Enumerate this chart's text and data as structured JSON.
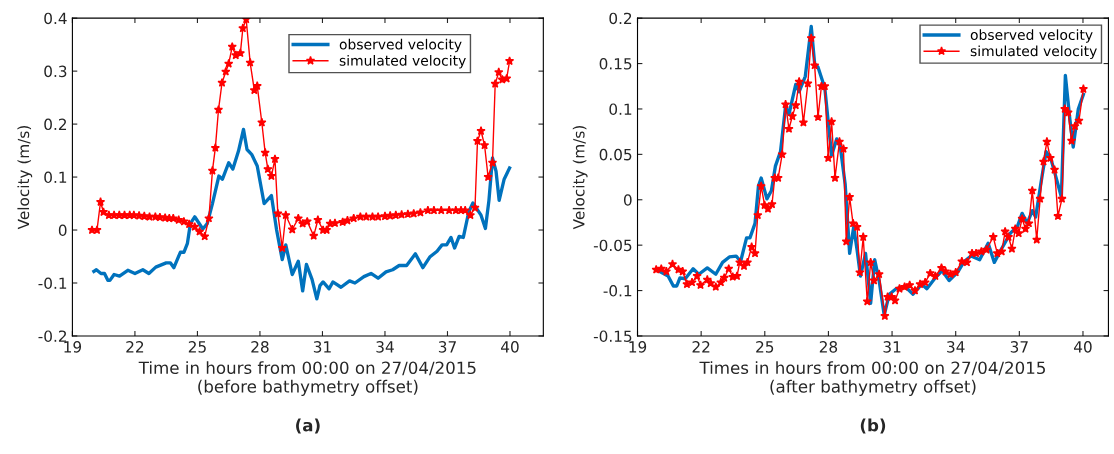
{
  "chart_data": [
    {
      "type": "line",
      "xlabel": "Time in hours from 00:00 on 27/04/2015\n(before bathymetry offset)",
      "ylabel": "Velocity (m/s)",
      "annotations": [
        "(a)"
      ],
      "xlim": [
        19,
        41.6
      ],
      "ylim": [
        -0.2,
        0.4
      ],
      "xticks": [
        19,
        22,
        25,
        28,
        31,
        34,
        37,
        40
      ],
      "yticks": [
        -0.2,
        -0.1,
        0,
        0.1,
        0.2,
        0.3,
        0.4
      ],
      "grid": false,
      "legend": "top right",
      "series": [
        {
          "name": "observed velocity",
          "color": "#0072bd",
          "marker": "none",
          "x": [
            20.03,
            20.15,
            20.37,
            20.54,
            20.7,
            20.8,
            21.0,
            21.26,
            21.66,
            22.0,
            22.38,
            22.67,
            23.0,
            23.5,
            23.7,
            23.87,
            24.18,
            24.35,
            24.52,
            24.66,
            24.87,
            25.26,
            25.47,
            25.72,
            26.03,
            26.2,
            26.5,
            26.7,
            26.97,
            27.21,
            27.38,
            27.6,
            27.87,
            28.2,
            28.55,
            28.8,
            29.07,
            29.24,
            29.55,
            29.84,
            30.05,
            30.23,
            30.5,
            30.73,
            30.88,
            31.03,
            31.32,
            31.5,
            31.89,
            32.3,
            32.56,
            32.99,
            33.33,
            33.67,
            34.05,
            34.37,
            34.68,
            35.04,
            35.46,
            35.82,
            36.15,
            36.5,
            36.74,
            36.96,
            37.17,
            37.34,
            37.56,
            37.76,
            38.02,
            38.22,
            38.61,
            38.82,
            38.99,
            39.16,
            39.33,
            39.48,
            39.72,
            39.98
          ],
          "values": [
            -0.078,
            -0.075,
            -0.082,
            -0.082,
            -0.095,
            -0.095,
            -0.084,
            -0.087,
            -0.076,
            -0.082,
            -0.075,
            -0.082,
            -0.07,
            -0.062,
            -0.062,
            -0.071,
            -0.042,
            -0.042,
            -0.025,
            0.012,
            0.025,
            0.002,
            0.012,
            0.05,
            0.102,
            0.096,
            0.127,
            0.115,
            0.149,
            0.19,
            0.152,
            0.143,
            0.121,
            0.05,
            0.065,
            0,
            -0.056,
            -0.028,
            -0.084,
            -0.059,
            -0.115,
            -0.065,
            -0.093,
            -0.13,
            -0.105,
            -0.098,
            -0.111,
            -0.098,
            -0.108,
            -0.096,
            -0.1,
            -0.088,
            -0.082,
            -0.091,
            -0.079,
            -0.075,
            -0.067,
            -0.067,
            -0.045,
            -0.071,
            -0.051,
            -0.04,
            -0.028,
            -0.028,
            -0.014,
            -0.034,
            -0.012,
            -0.014,
            0.034,
            0.051,
            0.028,
            0.003,
            0.056,
            0.136,
            0.111,
            0.056,
            0.096,
            0.117
          ]
        },
        {
          "name": "simulated velocity",
          "color": "#ff0000",
          "marker": "star",
          "x": [
            19.94,
            20.18,
            20.35,
            20.49,
            20.75,
            21.0,
            21.25,
            21.5,
            21.75,
            21.95,
            22.2,
            22.45,
            22.7,
            22.98,
            23.2,
            23.45,
            23.65,
            23.84,
            24.1,
            24.35,
            24.6,
            24.87,
            25.1,
            25.35,
            25.55,
            25.72,
            25.86,
            26.01,
            26.18,
            26.36,
            26.5,
            26.67,
            26.84,
            27.06,
            27.18,
            27.34,
            27.53,
            27.73,
            27.87,
            28.09,
            28.25,
            28.38,
            28.55,
            28.72,
            28.86,
            29.07,
            29.24,
            29.55,
            29.84,
            30.05,
            30.27,
            30.58,
            30.78,
            31.03,
            31.2,
            31.37,
            31.6,
            31.97,
            32.2,
            32.5,
            32.82,
            33.1,
            33.4,
            33.67,
            34.0,
            34.25,
            34.52,
            34.8,
            35.1,
            35.38,
            35.7,
            36.06,
            36.35,
            36.7,
            37.08,
            37.4,
            37.65,
            37.85,
            38.1,
            38.32,
            38.44,
            38.61,
            38.78,
            38.95,
            39.16,
            39.29,
            39.46,
            39.63,
            39.84,
            39.98
          ],
          "values": [
            0,
            0,
            0.053,
            0.034,
            0.028,
            0.028,
            0.028,
            0.028,
            0.028,
            0.028,
            0.027,
            0.026,
            0.025,
            0.025,
            0.024,
            0.023,
            0.022,
            0.022,
            0.019,
            0.016,
            0.011,
            0.006,
            -0.003,
            -0.012,
            0.022,
            0.112,
            0.155,
            0.227,
            0.278,
            0.299,
            0.314,
            0.346,
            0.33,
            0.334,
            0.381,
            0.398,
            0.316,
            0.264,
            0.272,
            0.203,
            0.146,
            0.115,
            0.102,
            0.134,
            0.031,
            -0.034,
            0.028,
            0.001,
            0.022,
            0.012,
            0.016,
            -0.011,
            0.019,
            0.0,
            0.0,
            0.012,
            0.013,
            0.015,
            0.018,
            0.022,
            0.025,
            0.025,
            0.025,
            0.025,
            0.026,
            0.027,
            0.028,
            0.029,
            0.03,
            0.031,
            0.033,
            0.037,
            0.037,
            0.037,
            0.037,
            0.037,
            0.037,
            0.037,
            0.028,
            0.042,
            0.168,
            0.187,
            0.16,
            0.1,
            0.127,
            0.276,
            0.298,
            0.284,
            0.286,
            0.319
          ]
        }
      ]
    },
    {
      "type": "line",
      "xlabel": "Times in hours from 00:00 on 27/04/2015\n(after bathymetry offset)",
      "ylabel": "Velocity (m/s)",
      "annotations": [
        "(b)"
      ],
      "xlim": [
        19,
        41.2
      ],
      "ylim": [
        -0.15,
        0.2
      ],
      "xticks": [
        19,
        22,
        25,
        28,
        31,
        34,
        37,
        40
      ],
      "yticks": [
        -0.15,
        -0.1,
        -0.05,
        0,
        0.05,
        0.1,
        0.15,
        0.2
      ],
      "grid": false,
      "legend": "top right",
      "series": [
        {
          "name": "observed velocity",
          "color": "#0072bd",
          "marker": "none",
          "x": [
            19.88,
            20.44,
            20.69,
            20.85,
            21.0,
            21.25,
            21.62,
            21.89,
            22.29,
            22.69,
            23.01,
            23.33,
            23.65,
            23.86,
            24.14,
            24.3,
            24.54,
            24.7,
            24.83,
            25.1,
            25.31,
            25.5,
            25.74,
            25.98,
            26.14,
            26.46,
            26.62,
            26.91,
            27.19,
            27.35,
            27.51,
            27.83,
            28.15,
            28.39,
            28.55,
            28.79,
            29.0,
            29.19,
            29.35,
            29.51,
            29.75,
            29.99,
            30.18,
            30.39,
            30.63,
            30.87,
            31.19,
            31.59,
            31.99,
            32.4,
            32.64,
            33.04,
            33.36,
            33.69,
            34.09,
            34.4,
            34.72,
            35.13,
            35.53,
            35.82,
            36.09,
            36.57,
            36.9,
            37.13,
            37.37,
            37.61,
            37.77,
            38.01,
            38.26,
            38.5,
            38.82,
            38.98,
            39.17,
            39.38,
            39.54,
            39.78,
            40.02
          ],
          "values": [
            -0.077,
            -0.084,
            -0.095,
            -0.095,
            -0.086,
            -0.087,
            -0.076,
            -0.082,
            -0.075,
            -0.082,
            -0.069,
            -0.063,
            -0.062,
            -0.068,
            -0.042,
            -0.042,
            -0.026,
            0.015,
            0.024,
            0.001,
            0.01,
            0.037,
            0.053,
            0.103,
            0.094,
            0.127,
            0.119,
            0.136,
            0.191,
            0.15,
            0.146,
            0.123,
            0.049,
            0.067,
            0.06,
            0.017,
            -0.059,
            -0.03,
            -0.055,
            -0.084,
            -0.059,
            -0.114,
            -0.066,
            -0.089,
            -0.127,
            -0.104,
            -0.098,
            -0.095,
            -0.104,
            -0.093,
            -0.098,
            -0.086,
            -0.078,
            -0.089,
            -0.08,
            -0.068,
            -0.062,
            -0.066,
            -0.048,
            -0.069,
            -0.057,
            -0.037,
            -0.03,
            -0.015,
            -0.026,
            -0.012,
            -0.019,
            0.017,
            0.053,
            0.044,
            0.017,
            0.003,
            0.137,
            0.089,
            0.058,
            0.1,
            0.116
          ]
        },
        {
          "name": "simulated velocity",
          "color": "#ff0000",
          "marker": "star",
          "x": [
            19.88,
            20.12,
            20.36,
            20.65,
            20.93,
            21.13,
            21.33,
            21.57,
            21.81,
            21.97,
            22.29,
            22.45,
            22.69,
            22.93,
            23.09,
            23.3,
            23.49,
            23.69,
            23.82,
            24.02,
            24.18,
            24.38,
            24.54,
            24.67,
            24.83,
            24.99,
            25.15,
            25.34,
            25.47,
            25.63,
            25.82,
            25.98,
            26.14,
            26.3,
            26.46,
            26.62,
            26.82,
            27.03,
            27.19,
            27.35,
            27.51,
            27.67,
            27.83,
            27.99,
            28.15,
            28.31,
            28.52,
            28.71,
            28.84,
            29.0,
            29.16,
            29.35,
            29.48,
            29.64,
            29.83,
            29.99,
            30.15,
            30.39,
            30.66,
            30.79,
            30.98,
            31.14,
            31.35,
            31.59,
            31.83,
            32.08,
            32.32,
            32.56,
            32.8,
            33.04,
            33.33,
            33.52,
            33.76,
            34.0,
            34.29,
            34.53,
            34.77,
            34.96,
            35.21,
            35.45,
            35.77,
            35.96,
            36.17,
            36.33,
            36.49,
            36.65,
            36.81,
            36.97,
            37.13,
            37.29,
            37.45,
            37.61,
            37.82,
            37.98,
            38.14,
            38.3,
            38.46,
            38.66,
            38.82,
            39.01,
            39.14,
            39.3,
            39.46,
            39.62,
            39.81,
            40.02
          ],
          "values": [
            -0.077,
            -0.076,
            -0.079,
            -0.071,
            -0.077,
            -0.079,
            -0.093,
            -0.091,
            -0.084,
            -0.094,
            -0.088,
            -0.092,
            -0.096,
            -0.091,
            -0.086,
            -0.076,
            -0.085,
            -0.084,
            -0.069,
            -0.073,
            -0.069,
            -0.052,
            -0.059,
            -0.017,
            0.015,
            -0.006,
            -0.01,
            -0.005,
            0.024,
            0.024,
            0.05,
            0.105,
            0.078,
            0.092,
            0.104,
            0.13,
            0.085,
            0.128,
            0.178,
            0.148,
            0.091,
            0.125,
            0.125,
            0.046,
            0.086,
            0.024,
            0.064,
            0.056,
            -0.046,
            0.003,
            -0.026,
            -0.03,
            -0.08,
            -0.041,
            -0.112,
            -0.069,
            -0.089,
            -0.082,
            -0.128,
            -0.107,
            -0.107,
            -0.111,
            -0.098,
            -0.096,
            -0.094,
            -0.1,
            -0.093,
            -0.091,
            -0.081,
            -0.084,
            -0.075,
            -0.079,
            -0.082,
            -0.08,
            -0.068,
            -0.069,
            -0.059,
            -0.059,
            -0.057,
            -0.055,
            -0.041,
            -0.059,
            -0.057,
            -0.035,
            -0.041,
            -0.054,
            -0.032,
            -0.037,
            -0.021,
            -0.032,
            -0.026,
            0.01,
            -0.044,
            0.001,
            0.042,
            0.064,
            0.046,
            0.033,
            -0.018,
            0.001,
            0.1,
            0.096,
            0.065,
            0.081,
            0.087,
            0.122
          ]
        }
      ]
    }
  ]
}
